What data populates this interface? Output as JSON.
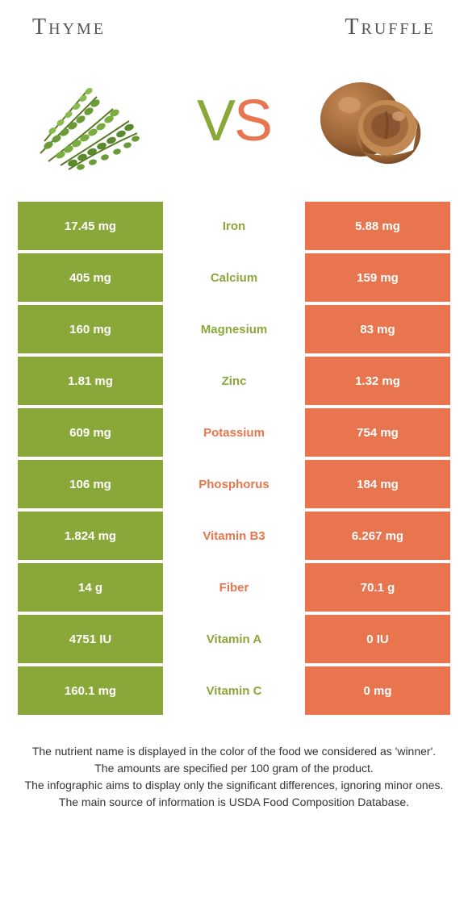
{
  "colors": {
    "left_bg": "#8aa83a",
    "right_bg": "#e8754d",
    "left_text": "#8aa83a",
    "right_text": "#e8754d",
    "value_text": "#ffffff",
    "title_text": "#555555",
    "foot_text": "#333333",
    "bg": "#ffffff"
  },
  "foods": {
    "left": "Thyme",
    "right": "Truffle"
  },
  "vs": {
    "v": "V",
    "s": "S"
  },
  "rows": [
    {
      "name": "Iron",
      "left": "17.45 mg",
      "right": "5.88 mg",
      "winner": "left"
    },
    {
      "name": "Calcium",
      "left": "405 mg",
      "right": "159 mg",
      "winner": "left"
    },
    {
      "name": "Magnesium",
      "left": "160 mg",
      "right": "83 mg",
      "winner": "left"
    },
    {
      "name": "Zinc",
      "left": "1.81 mg",
      "right": "1.32 mg",
      "winner": "left"
    },
    {
      "name": "Potassium",
      "left": "609 mg",
      "right": "754 mg",
      "winner": "right"
    },
    {
      "name": "Phosphorus",
      "left": "106 mg",
      "right": "184 mg",
      "winner": "right"
    },
    {
      "name": "Vitamin B3",
      "left": "1.824 mg",
      "right": "6.267 mg",
      "winner": "right"
    },
    {
      "name": "Fiber",
      "left": "14 g",
      "right": "70.1 g",
      "winner": "right"
    },
    {
      "name": "Vitamin A",
      "left": "4751 IU",
      "right": "0 IU",
      "winner": "left"
    },
    {
      "name": "Vitamin C",
      "left": "160.1 mg",
      "right": "0 mg",
      "winner": "left"
    }
  ],
  "footnotes": [
    "The nutrient name is displayed in the color of the food we considered as 'winner'.",
    "The amounts are specified per 100 gram of the product.",
    "The infographic aims to display only the significant differences, ignoring minor ones.",
    "The main source of information is USDA Food Composition Database."
  ]
}
